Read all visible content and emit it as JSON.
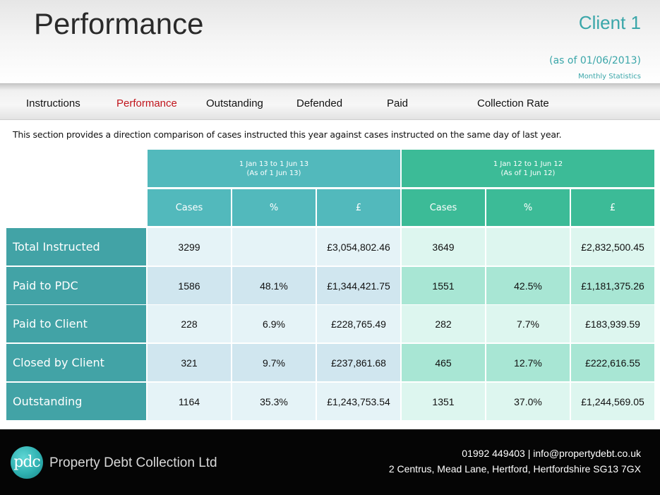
{
  "header": {
    "title": "Performance",
    "client": "Client 1",
    "as_of": "(as of 01/06/2013)",
    "subtitle": "Monthly Statistics"
  },
  "nav": {
    "items": [
      {
        "label": "Instructions",
        "active": false
      },
      {
        "label": "Performance",
        "active": true
      },
      {
        "label": "Outstanding",
        "active": false
      },
      {
        "label": "Defended",
        "active": false
      },
      {
        "label": "Paid",
        "active": false
      },
      {
        "label": "Collection Rate",
        "active": false
      }
    ]
  },
  "intro": "This section provides a direction  comparison of cases instructed this year against cases instructed on the same day of last year.",
  "table": {
    "periods": [
      {
        "line1": "1 Jan 13 to 1 Jun 13",
        "line2": "(As of 1 Jun 13)"
      },
      {
        "line1": "1 Jan 12 to 1 Jun 12",
        "line2": "(As of 1 Jun 12)"
      }
    ],
    "columns": [
      "Cases",
      "%",
      "£",
      "Cases",
      "%",
      "£"
    ],
    "rows": [
      {
        "label": "Total Instructed",
        "values": [
          "3299",
          "",
          "£3,054,802.46",
          "3649",
          "",
          "£2,832,500.45"
        ]
      },
      {
        "label": "Paid to PDC",
        "values": [
          "1586",
          "48.1%",
          "£1,344,421.75",
          "1551",
          "42.5%",
          "£1,181,375.26"
        ]
      },
      {
        "label": "Paid to Client",
        "values": [
          "228",
          "6.9%",
          "£228,765.49",
          "282",
          "7.7%",
          "£183,939.59"
        ]
      },
      {
        "label": "Closed by Client",
        "values": [
          "321",
          "9.7%",
          "£237,861.68",
          "465",
          "12.7%",
          "£222,616.55"
        ]
      },
      {
        "label": "Outstanding",
        "values": [
          "1164",
          "35.3%",
          "£1,243,753.54",
          "1351",
          "37.0%",
          "£1,244,569.05"
        ]
      }
    ]
  },
  "colors": {
    "accent": "#3aa6a9",
    "nav_active": "#c0141b",
    "row_label_bg": "#42a3a6",
    "period1_header": "#52b9bc",
    "period2_header": "#3cbb97",
    "period1_light": "#e5f3f7",
    "period1_dark": "#d0e6ef",
    "period2_light": "#ddf6ef",
    "period2_dark": "#a8e6d4"
  },
  "footer": {
    "logo": "pdc",
    "company": "Property Debt Collection Ltd",
    "contact": "01992 449403  |  info@propertydebt.co.uk",
    "address": "2 Centrus, Mead Lane, Hertford, Hertfordshire SG13 7GX"
  }
}
